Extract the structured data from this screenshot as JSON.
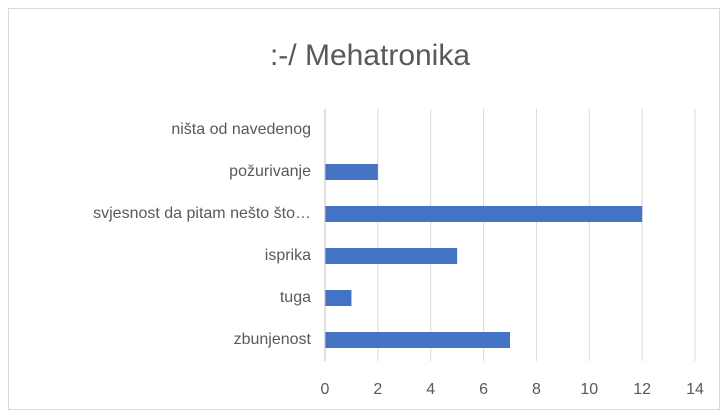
{
  "chart_data": {
    "type": "bar",
    "orientation": "horizontal",
    "title": ":-/ Mehatronika",
    "categories": [
      "ništa od navedenog",
      "požurivanje",
      "svjesnost da pitam nešto što…",
      "isprika",
      "tuga",
      "zbunjenost"
    ],
    "values": [
      0,
      2,
      12,
      5,
      1,
      7
    ],
    "color": "#4472c4",
    "xlim": [
      0,
      14
    ],
    "xticks": [
      0,
      2,
      4,
      6,
      8,
      10,
      12,
      14
    ],
    "grid": true
  }
}
